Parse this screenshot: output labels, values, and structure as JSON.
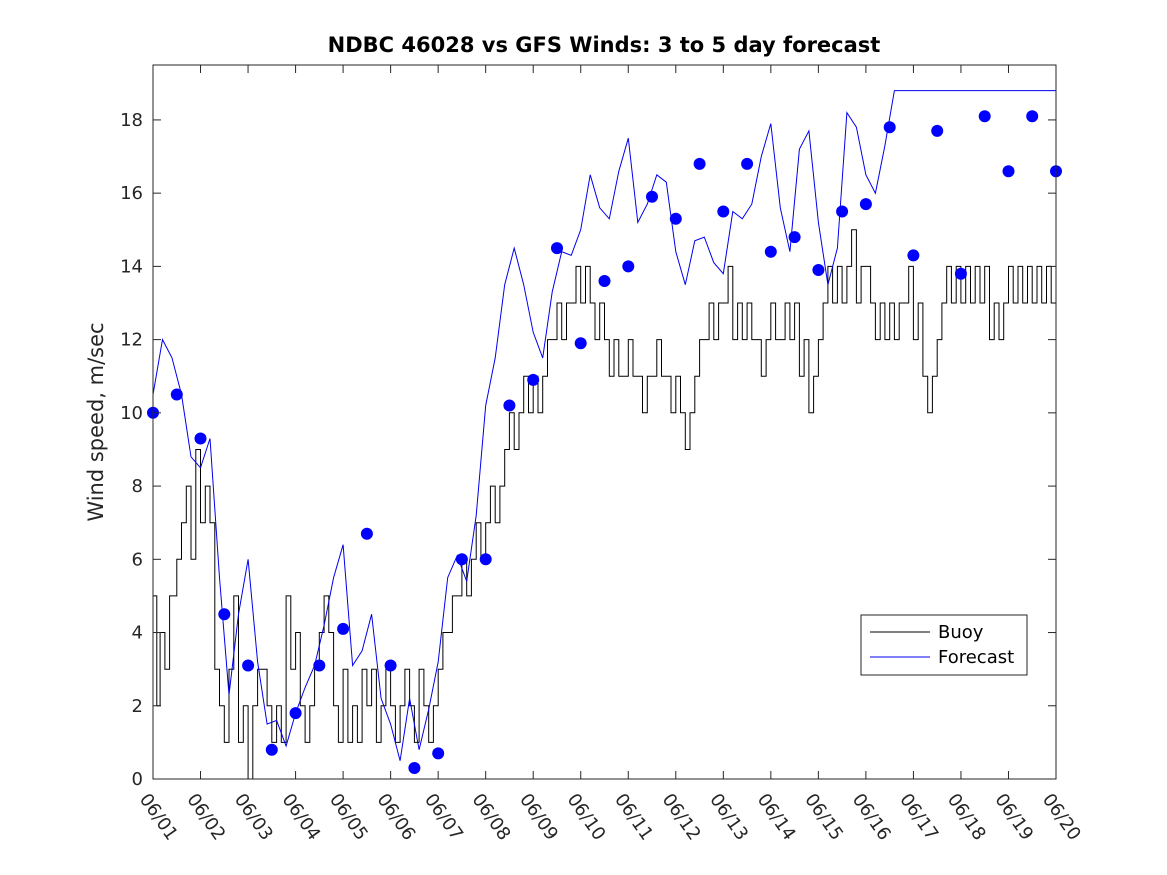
{
  "chart_data": {
    "type": "line",
    "title": "NDBC 46028 vs GFS Winds: 3 to 5 day forecast",
    "xlabel": "",
    "ylabel": "Wind speed, m/sec",
    "xlim": [
      0,
      19
    ],
    "ylim": [
      0,
      19.5
    ],
    "x_tick_labels": [
      "06/01",
      "06/02",
      "06/03",
      "06/04",
      "06/05",
      "06/06",
      "06/07",
      "06/08",
      "06/09",
      "06/10",
      "06/11",
      "06/12",
      "06/13",
      "06/14",
      "06/15",
      "06/16",
      "06/17",
      "06/18",
      "06/19",
      "06/20"
    ],
    "y_ticks": [
      0,
      2,
      4,
      6,
      8,
      10,
      12,
      14,
      16,
      18
    ],
    "grid": false,
    "legend_position": "lower-right",
    "colors": {
      "buoy": "#000000",
      "forecast": "#0000ee",
      "marker": "#0000ff",
      "axes": "#262626"
    },
    "series": [
      {
        "name": "Buoy",
        "x": [
          0.0,
          0.08,
          0.15,
          0.25,
          0.35,
          0.5,
          0.6,
          0.7,
          0.8,
          0.9,
          1.0,
          1.1,
          1.2,
          1.3,
          1.4,
          1.5,
          1.6,
          1.7,
          1.8,
          1.9,
          2.0,
          2.1,
          2.2,
          2.3,
          2.4,
          2.5,
          2.6,
          2.7,
          2.8,
          2.9,
          3.0,
          3.1,
          3.2,
          3.3,
          3.4,
          3.5,
          3.6,
          3.7,
          3.8,
          3.9,
          4.0,
          4.1,
          4.2,
          4.3,
          4.4,
          4.5,
          4.6,
          4.7,
          4.8,
          4.9,
          5.0,
          5.1,
          5.2,
          5.3,
          5.4,
          5.5,
          5.6,
          5.7,
          5.8,
          5.9,
          6.0,
          6.1,
          6.2,
          6.3,
          6.4,
          6.5,
          6.6,
          6.7,
          6.8,
          6.9,
          7.0,
          7.1,
          7.2,
          7.3,
          7.4,
          7.5,
          7.6,
          7.7,
          7.8,
          7.9,
          8.0,
          8.1,
          8.2,
          8.3,
          8.4,
          8.5,
          8.6,
          8.7,
          8.8,
          8.9,
          9.0,
          9.1,
          9.2,
          9.3,
          9.4,
          9.5,
          9.6,
          9.7,
          9.8,
          9.9,
          10.0,
          10.1,
          10.2,
          10.3,
          10.4,
          10.5,
          10.6,
          10.7,
          10.8,
          10.9,
          11.0,
          11.1,
          11.2,
          11.3,
          11.4,
          11.5,
          11.6,
          11.7,
          11.8,
          11.9,
          12.0,
          12.1,
          12.2,
          12.3,
          12.4,
          12.5,
          12.6,
          12.7,
          12.8,
          12.9,
          13.0,
          13.1,
          13.2,
          13.3,
          13.4,
          13.5,
          13.6,
          13.7,
          13.8,
          13.9,
          14.0,
          14.1,
          14.2,
          14.3,
          14.4,
          14.5,
          14.6,
          14.7,
          14.8,
          14.9,
          15.0,
          15.1,
          15.2,
          15.3,
          15.4,
          15.5,
          15.6,
          15.7,
          15.8,
          15.9,
          16.0,
          16.1,
          16.2,
          16.3,
          16.4,
          16.5,
          16.6,
          16.7,
          16.8,
          16.9,
          17.0,
          17.1,
          17.2,
          17.3,
          17.4,
          17.5,
          17.6,
          17.7,
          17.8,
          17.9,
          18.0,
          18.1,
          18.2,
          18.3,
          18.4,
          18.5,
          18.6,
          18.7,
          18.8,
          18.9,
          19.0
        ],
        "y": [
          5,
          2,
          4,
          3,
          5,
          6,
          7,
          8,
          6,
          9,
          7,
          8,
          7,
          3,
          2,
          1,
          3,
          5,
          1,
          2,
          0,
          2,
          3,
          3,
          2,
          1,
          2,
          1,
          5,
          3,
          4,
          2,
          1,
          2,
          3,
          4,
          5,
          4,
          2,
          1,
          3,
          1,
          2,
          1,
          3,
          2,
          3,
          1,
          2,
          3,
          2,
          1,
          2,
          3,
          2,
          1,
          3,
          2,
          1,
          2,
          3,
          4,
          4,
          5,
          5,
          6,
          5,
          6,
          7,
          6,
          7,
          8,
          7,
          8,
          9,
          10,
          9,
          10,
          11,
          10,
          11,
          10,
          11,
          12,
          12,
          13,
          12,
          13,
          13,
          14,
          13,
          14,
          13,
          12,
          13,
          12,
          11,
          12,
          11,
          11,
          12,
          11,
          11,
          10,
          11,
          11,
          12,
          11,
          11,
          10,
          11,
          10,
          9,
          10,
          11,
          12,
          12,
          13,
          12,
          13,
          13,
          14,
          12,
          13,
          12,
          13,
          12,
          12,
          11,
          12,
          13,
          12,
          12,
          13,
          12,
          13,
          11,
          12,
          10,
          11,
          12,
          13,
          14,
          13,
          14,
          13,
          14,
          15,
          13,
          14,
          14,
          13,
          12,
          13,
          12,
          13,
          12,
          13,
          13,
          14,
          12,
          13,
          11,
          10,
          11,
          12,
          13,
          14,
          13,
          14,
          13,
          14,
          13,
          14,
          13,
          14,
          12,
          13,
          12,
          13,
          14,
          13,
          14,
          13,
          14,
          13,
          14,
          13,
          14,
          13,
          14
        ]
      },
      {
        "name": "Forecast",
        "x": [
          0,
          0.2,
          0.4,
          0.6,
          0.8,
          1.0,
          1.2,
          1.4,
          1.6,
          1.8,
          2.0,
          2.2,
          2.4,
          2.6,
          2.8,
          3.0,
          3.2,
          3.4,
          3.6,
          3.8,
          4.0,
          4.2,
          4.4,
          4.6,
          4.8,
          5.0,
          5.2,
          5.4,
          5.6,
          5.8,
          6.0,
          6.2,
          6.4,
          6.6,
          6.8,
          7.0,
          7.2,
          7.4,
          7.6,
          7.8,
          8.0,
          8.2,
          8.4,
          8.6,
          8.8,
          9.0,
          9.2,
          9.4,
          9.6,
          9.8,
          10.0,
          10.2,
          10.4,
          10.6,
          10.8,
          11.0,
          11.2,
          11.4,
          11.6,
          11.8,
          12.0,
          12.2,
          12.4,
          12.6,
          12.8,
          13.0,
          13.2,
          13.4,
          13.6,
          13.8,
          14.0,
          14.2,
          14.4,
          14.6,
          14.8,
          15.0,
          15.2,
          15.4,
          15.6,
          15.8,
          16.0,
          16.2,
          16.4,
          16.6,
          16.8,
          17.0,
          17.2,
          17.4,
          17.6,
          17.8,
          18.0,
          18.2,
          18.4,
          18.6,
          18.8,
          19.0
        ],
        "y": [
          10.5,
          12,
          11.5,
          10.5,
          8.8,
          8.5,
          9.3,
          5.5,
          2.3,
          4.5,
          6,
          3.2,
          1.5,
          1.6,
          0.9,
          1.8,
          2.5,
          3.1,
          4.2,
          5.5,
          6.4,
          3.1,
          3.5,
          4.5,
          2.2,
          1.5,
          0.5,
          2.2,
          0.8,
          1.9,
          3.2,
          5.5,
          6.1,
          5.4,
          7.2,
          10.2,
          11.5,
          13.5,
          14.5,
          13.5,
          12.2,
          11.5,
          13.3,
          14.4,
          14.3,
          15,
          16.5,
          15.6,
          15.3,
          16.6,
          17.5,
          15.2,
          15.7,
          16.5,
          16.3,
          14.4,
          13.5,
          14.7,
          14.8,
          14.1,
          13.8,
          15.5,
          15.3,
          15.7,
          17,
          17.9,
          15.6,
          14.4,
          17.2,
          17.7,
          15.2,
          13.5,
          14.5,
          18.2,
          17.8,
          16.5,
          16,
          17.3,
          18.8,
          18.8,
          18.8,
          18.8,
          18.8,
          18.8,
          18.8,
          18.8,
          18.8,
          18.8,
          18.8,
          18.8,
          18.8,
          18.8,
          18.8,
          18.8,
          18.8,
          18.8
        ]
      },
      {
        "name": "",
        "marker": "circle",
        "x": [
          0,
          0.5,
          1,
          1.5,
          2,
          2.5,
          3,
          3.5,
          4,
          4.5,
          5,
          5.5,
          6,
          6.5,
          7,
          7.5,
          8,
          8.5,
          9,
          9.5,
          10,
          10.5,
          11,
          11.5,
          12,
          12.5,
          13,
          13.5,
          14,
          14.5,
          15,
          15.5,
          16,
          16.5,
          17,
          17.5,
          18,
          18.5,
          19
        ],
        "y": [
          10,
          10.5,
          9.3,
          4.5,
          3.1,
          0.8,
          1.8,
          3.1,
          4.1,
          6.7,
          3.1,
          0.3,
          0.7,
          6,
          6,
          10.2,
          10.9,
          14.5,
          11.9,
          13.6,
          14,
          15.9,
          15.3,
          16.8,
          15.5,
          16.8,
          14.4,
          14.8,
          13.9,
          15.5,
          15.7,
          17.8,
          14.3,
          17.7,
          13.8,
          18.1,
          16.6,
          18.1,
          16.6
        ]
      }
    ]
  }
}
